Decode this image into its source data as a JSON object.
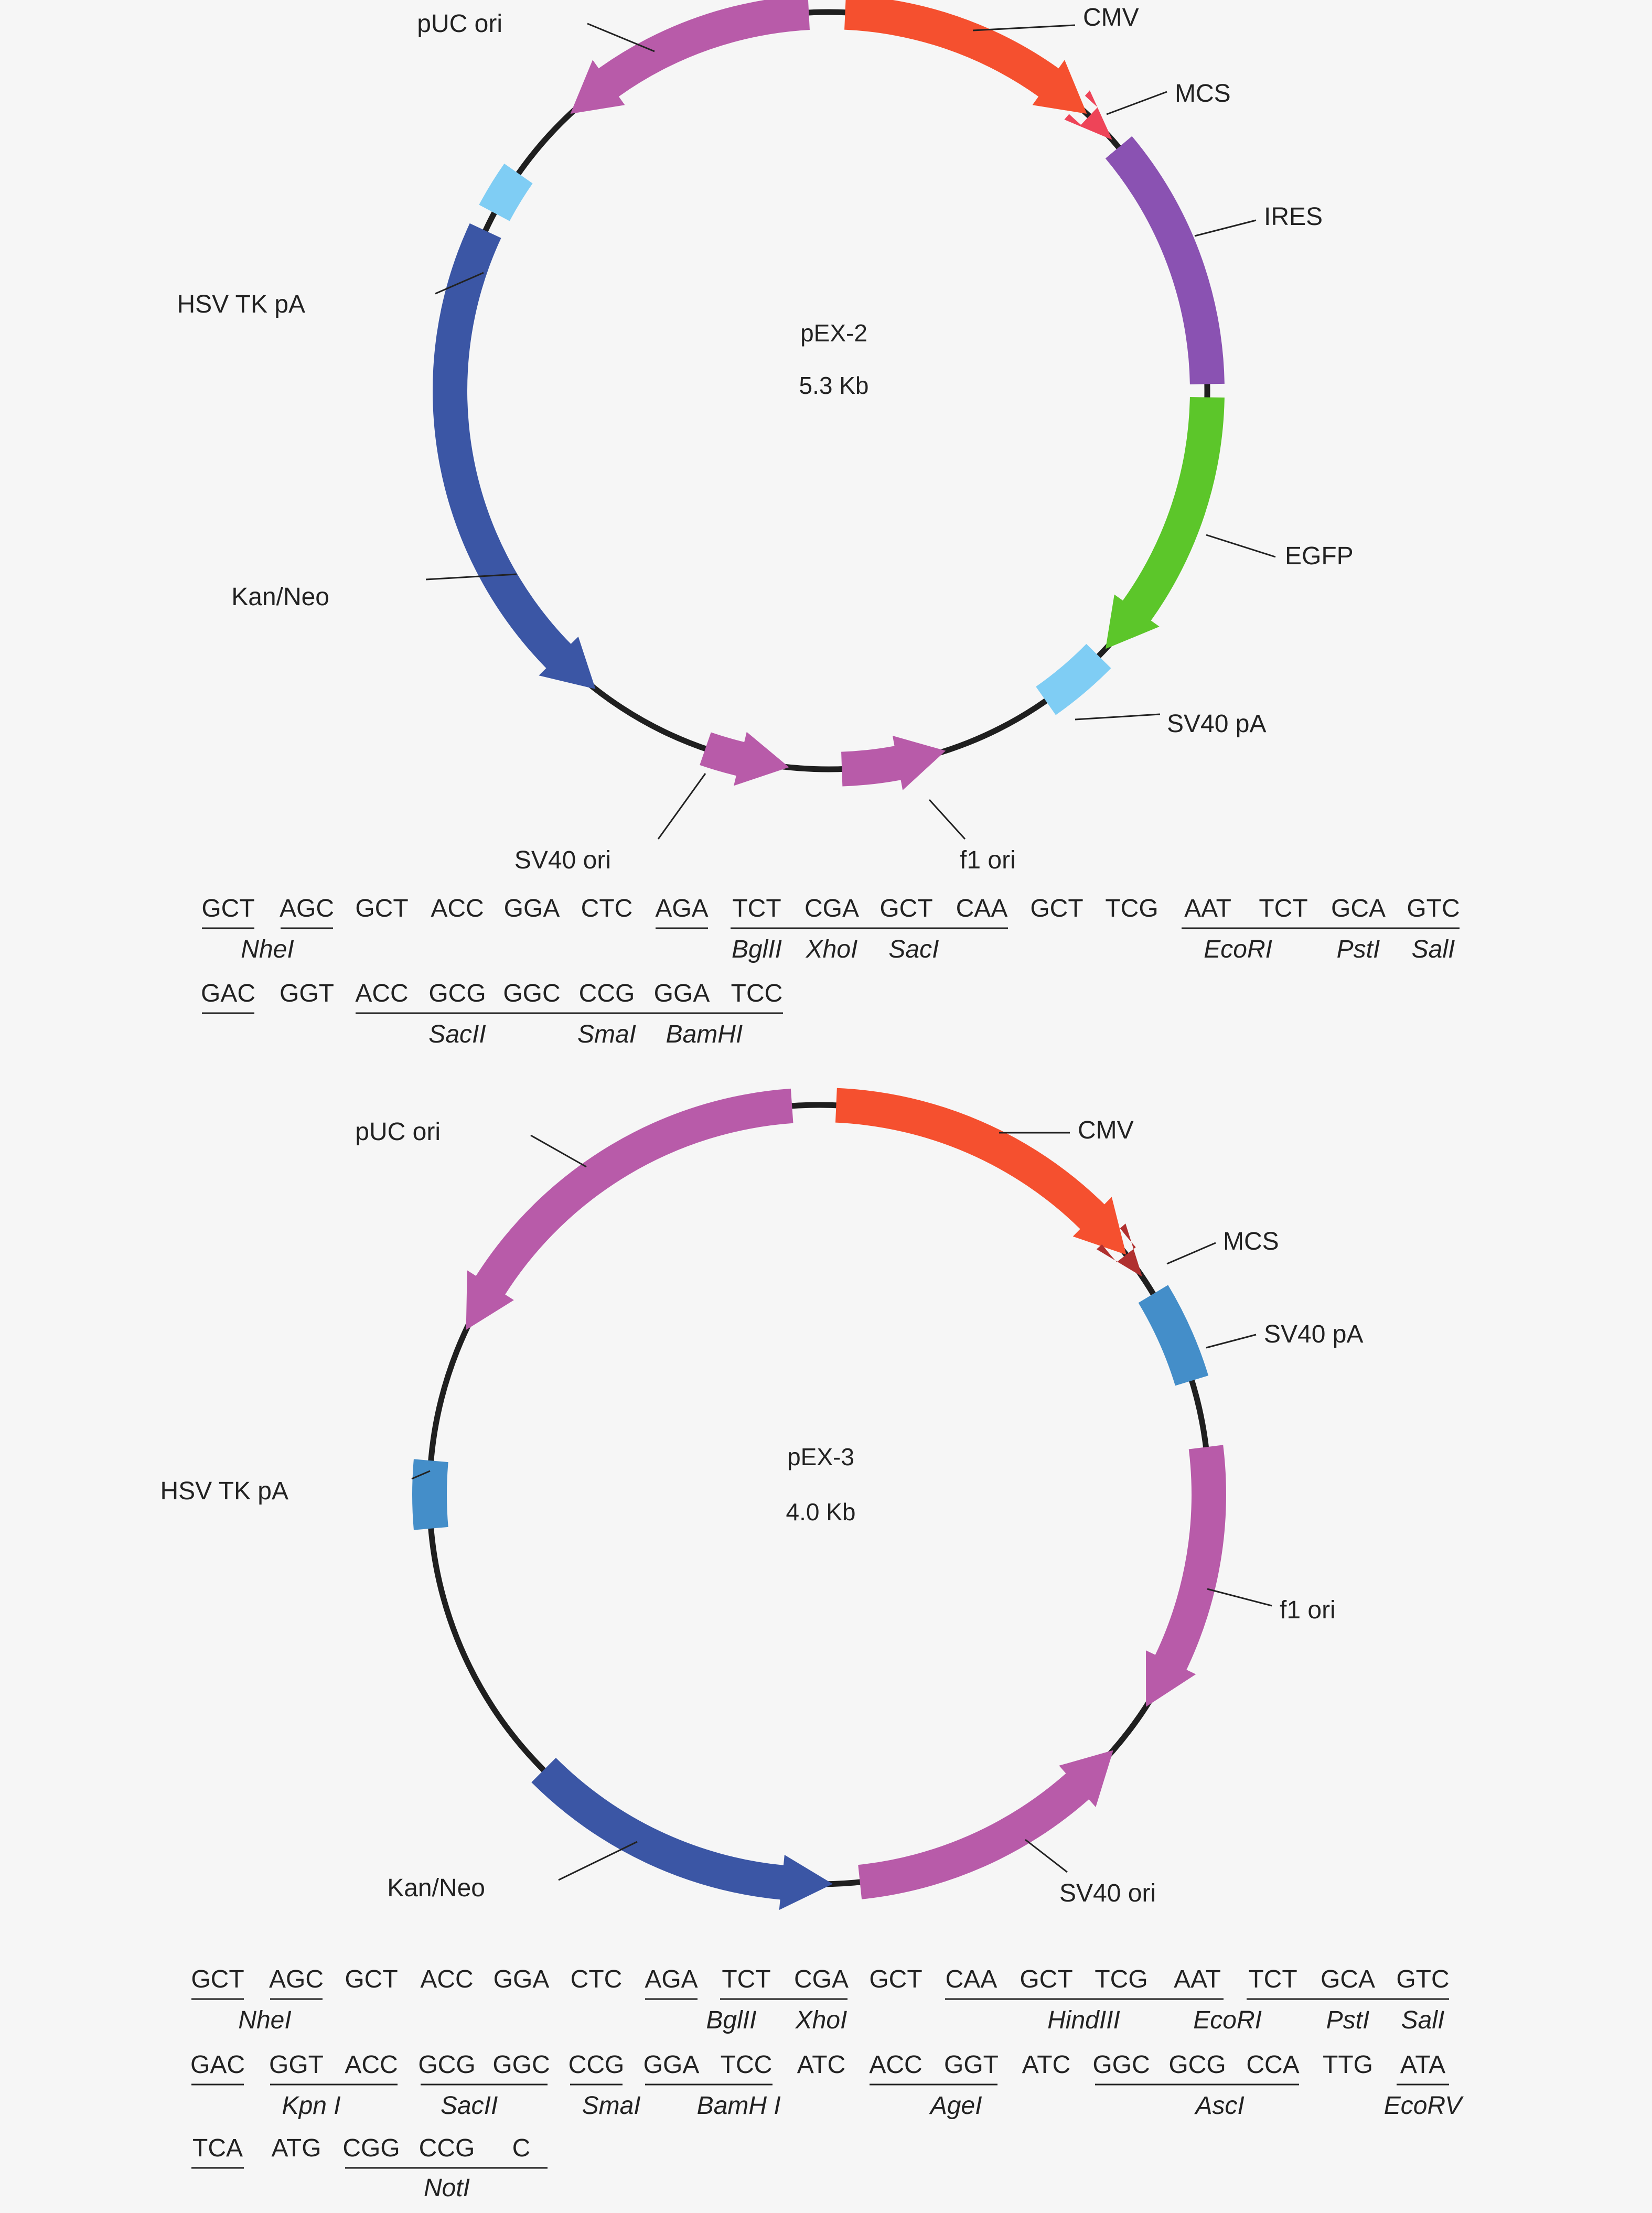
{
  "plasmids": [
    {
      "name": "pEX-2",
      "size": "5.3 Kb",
      "features": [
        {
          "label": "CMV",
          "color": "#f5502f"
        },
        {
          "label": "MCS",
          "color": "#ee4458"
        },
        {
          "label": "IRES",
          "color": "#8a52b2"
        },
        {
          "label": "EGFP",
          "color": "#5cc62a"
        },
        {
          "label": "SV40 pA",
          "color": "#7fcdf4"
        },
        {
          "label": "f1 ori",
          "color": "#b85ba9"
        },
        {
          "label": "SV40 ori",
          "color": "#b85ba9"
        },
        {
          "label": "Kan/Neo",
          "color": "#3b56a5"
        },
        {
          "label": "HSV TK pA",
          "color": "#7fcdf4"
        },
        {
          "label": "pUC ori",
          "color": "#b85ba9"
        }
      ],
      "mcs": {
        "rows": [
          [
            "GCT",
            "AGC",
            "GCT",
            "ACC",
            "GGA",
            "CTC",
            "AGA",
            "TCT",
            "CGA",
            "GCT",
            "CAA",
            "GCT",
            "TCG",
            "AAT",
            "TCT",
            "GCA",
            "GTC"
          ],
          [
            "GAC",
            "GGT",
            "ACC",
            "GCG",
            "GGC",
            "CCG",
            "GGA",
            "TCC"
          ]
        ],
        "enzymes": [
          "NheI",
          "BglII",
          "XhoI",
          "SacI",
          "EcoRI",
          "PstI",
          "SalI",
          "SacII",
          "SmaI",
          "BamHI"
        ]
      }
    },
    {
      "name": "pEX-3",
      "size": "4.0 Kb",
      "features": [
        {
          "label": "CMV",
          "color": "#f5502f"
        },
        {
          "label": "MCS",
          "color": "#b0302f"
        },
        {
          "label": "SV40 pA",
          "color": "#448ec9"
        },
        {
          "label": "f1 ori",
          "color": "#b85ba9"
        },
        {
          "label": "SV40 ori",
          "color": "#b85ba9"
        },
        {
          "label": "Kan/Neo",
          "color": "#3b56a5"
        },
        {
          "label": "HSV TK pA",
          "color": "#448ec9"
        },
        {
          "label": "pUC ori",
          "color": "#b85ba9"
        }
      ],
      "mcs": {
        "rows": [
          [
            "GCT",
            "AGC",
            "GCT",
            "ACC",
            "GGA",
            "CTC",
            "AGA",
            "TCT",
            "CGA",
            "GCT",
            "CAA",
            "GCT",
            "TCG",
            "AAT",
            "TCT",
            "GCA",
            "GTC"
          ],
          [
            "GAC",
            "GGT",
            "ACC",
            "GCG",
            "GGC",
            "CCG",
            "GGA",
            "TCC",
            "ATC",
            "ACC",
            "GGT",
            "ATC",
            "GGC",
            "GCG",
            "CCA",
            "TTG",
            "ATA"
          ],
          [
            "TCA",
            "ATG",
            "CGG",
            "CCG",
            "C"
          ]
        ],
        "enzymes": [
          "NheI",
          "BglII",
          "XhoI",
          "HindIII",
          "EcoRI",
          "PstI",
          "SalI",
          "Kpn I",
          "SacII",
          "SmaI",
          "BamH I",
          "AgeI",
          "AscI",
          "EcoRV",
          "NotI"
        ]
      }
    }
  ]
}
